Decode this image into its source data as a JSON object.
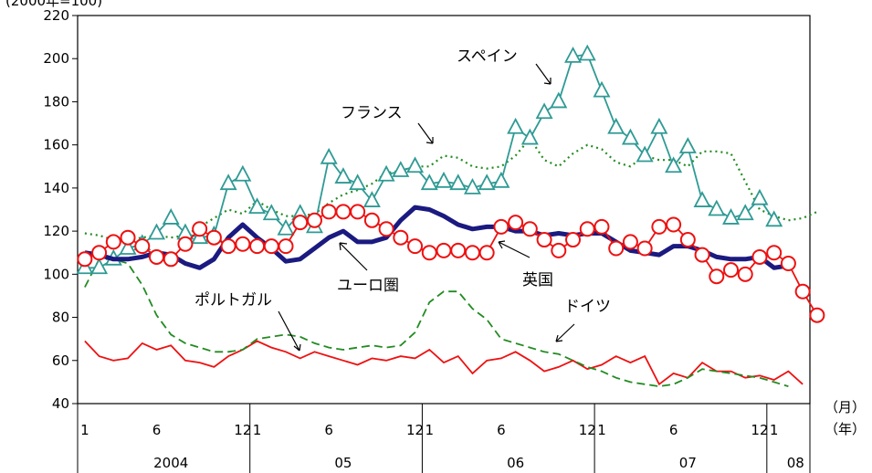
{
  "chart_data": {
    "type": "line",
    "header_text": "(2000年=100)",
    "ylim": [
      40,
      220
    ],
    "y_ticks": [
      40,
      60,
      80,
      100,
      120,
      140,
      160,
      180,
      200,
      220
    ],
    "x_unit_month": "（月）",
    "x_unit_year": "（年）",
    "x_month_labels": [
      "1",
      "6",
      "12",
      "1",
      "6",
      "12",
      "1",
      "6",
      "12",
      "1",
      "6",
      "12",
      "1"
    ],
    "x_month_label_positions": [
      1,
      6,
      12,
      13,
      18,
      24,
      25,
      30,
      36,
      37,
      42,
      48,
      49
    ],
    "x_year_labels": [
      "2004",
      "05",
      "06",
      "07",
      "08"
    ],
    "months": 51,
    "series": [
      {
        "name": "ユーロ圏",
        "color": "#1a1a80",
        "values": [
          110,
          109,
          107,
          107,
          108,
          110,
          109,
          105,
          103,
          107,
          117,
          123,
          117,
          112,
          106,
          107,
          112,
          117,
          120,
          115,
          115,
          117,
          125,
          131,
          130,
          127,
          123,
          121,
          122,
          122,
          120,
          120,
          118,
          119,
          118,
          119,
          119,
          115,
          111,
          110,
          109,
          113,
          113,
          111,
          108,
          107,
          107,
          108,
          103,
          104
        ]
      },
      {
        "name": "英国",
        "color": "#ee1111",
        "values": [
          107,
          110,
          115,
          117,
          113,
          108,
          107,
          114,
          121,
          117,
          113,
          114,
          113,
          113,
          113,
          124,
          125,
          129,
          129,
          129,
          125,
          121,
          117,
          113,
          110,
          111,
          111,
          110,
          110,
          122,
          124,
          121,
          116,
          111,
          116,
          121,
          122,
          112,
          115,
          112,
          122,
          123,
          116,
          109,
          99,
          102,
          100,
          108,
          110,
          105,
          92,
          81
        ]
      },
      {
        "name": "スペイン",
        "color": "#2f9a94",
        "values": [
          103,
          103,
          107,
          112,
          114,
          119,
          126,
          119,
          117,
          118,
          142,
          146,
          131,
          128,
          121,
          128,
          122,
          154,
          145,
          142,
          134,
          146,
          148,
          150,
          142,
          143,
          142,
          140,
          142,
          143,
          168,
          163,
          175,
          180,
          201,
          202,
          185,
          168,
          163,
          155,
          168,
          150,
          159,
          134,
          130,
          126,
          128,
          135,
          125
        ]
      },
      {
        "name": "フランス",
        "color": "#228b22",
        "values": [
          119,
          118,
          116,
          116,
          117,
          118,
          117,
          118,
          122,
          126,
          130,
          128,
          134,
          130,
          127,
          127,
          128,
          133,
          137,
          139,
          142,
          147,
          148,
          150,
          150,
          155,
          154,
          150,
          149,
          150,
          155,
          163,
          153,
          150,
          156,
          160,
          158,
          152,
          150,
          155,
          153,
          153,
          150,
          157,
          157,
          156,
          143,
          130,
          127,
          125,
          126,
          129
        ]
      },
      {
        "name": "ドイツ",
        "color": "#228b22",
        "values": [
          94,
          107,
          107,
          105,
          95,
          81,
          72,
          68,
          66,
          64,
          64,
          65,
          70,
          71,
          72,
          71,
          68,
          66,
          65,
          66,
          67,
          66,
          67,
          73,
          87,
          92,
          92,
          84,
          79,
          70,
          68,
          66,
          64,
          63,
          60,
          57,
          55,
          52,
          50,
          49,
          48,
          49,
          52,
          56,
          55,
          54,
          53,
          52,
          50,
          48
        ]
      },
      {
        "name": "ポルトガル",
        "color": "#ee1111",
        "values": [
          69,
          62,
          60,
          61,
          68,
          65,
          67,
          60,
          59,
          57,
          62,
          65,
          69,
          66,
          64,
          61,
          64,
          62,
          60,
          58,
          61,
          60,
          62,
          61,
          65,
          59,
          62,
          54,
          60,
          61,
          64,
          60,
          55,
          57,
          60,
          56,
          58,
          62,
          59,
          62,
          49,
          54,
          52,
          59,
          55,
          55,
          52,
          53,
          51,
          55,
          49
        ]
      }
    ],
    "labels": {
      "euro": "ユーロ圏",
      "uk": "英国",
      "spain": "スペイン",
      "france": "フランス",
      "germany": "ドイツ",
      "portugal": "ポルトガル"
    }
  }
}
